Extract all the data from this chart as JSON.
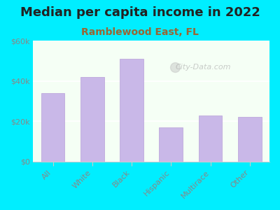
{
  "title": "Median per capita income in 2022",
  "subtitle": "Ramblewood East, FL",
  "categories": [
    "All",
    "White",
    "Black",
    "Hispanic",
    "Multirace",
    "Other"
  ],
  "values": [
    34000,
    42000,
    51000,
    17000,
    23000,
    22000
  ],
  "bar_color": "#c9b8e8",
  "bar_edge_color": "#b8a0d8",
  "title_fontsize": 13,
  "subtitle_fontsize": 10,
  "title_color": "#222222",
  "subtitle_color": "#996633",
  "tick_label_color": "#888888",
  "axis_label_color": "#888888",
  "background_outer": "#00eeff",
  "background_inner_top": "#f0fff0",
  "background_inner_bottom": "#e8ffe8",
  "ylim": [
    0,
    60000
  ],
  "yticks": [
    0,
    20000,
    40000,
    60000
  ],
  "ytick_labels": [
    "$0",
    "$20k",
    "$40k",
    "$60k"
  ],
  "watermark": "City-Data.com"
}
